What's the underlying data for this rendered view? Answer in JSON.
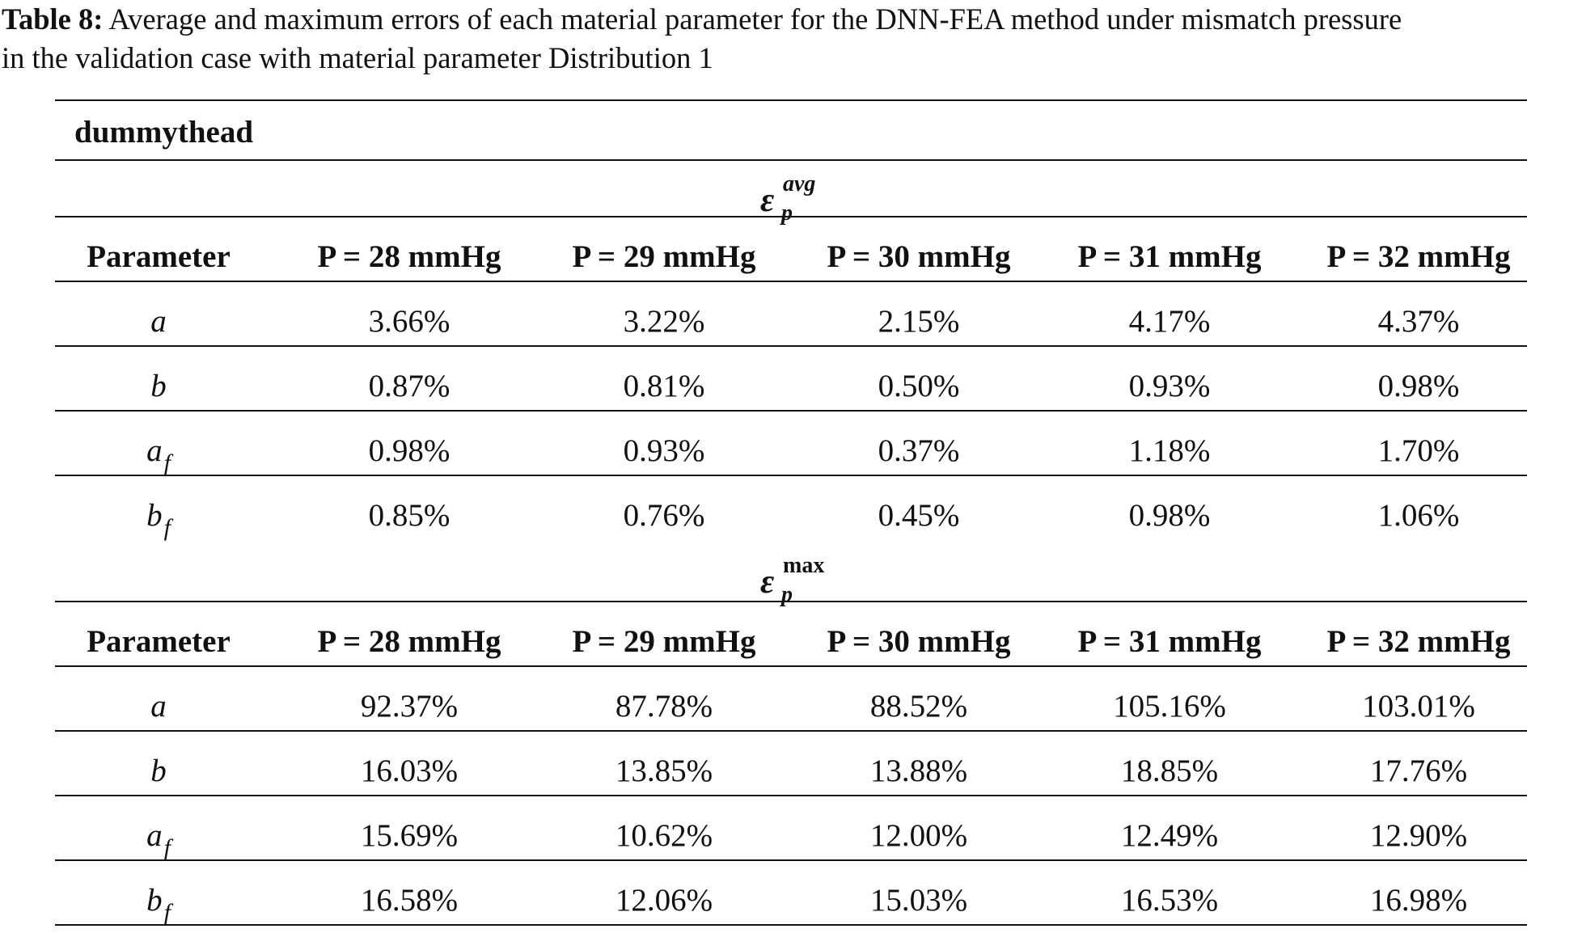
{
  "caption": {
    "label": "Table 8:",
    "line1": " Average and maximum errors of each material parameter for the DNN-FEA method under mismatch pressure",
    "line2": "in the validation case with material parameter Distribution 1"
  },
  "table": {
    "thead_label": "dummythead",
    "sections": [
      {
        "symbol": {
          "base": "ε",
          "sup": "avg",
          "sub": "p"
        },
        "header": [
          "Parameter",
          "P = 28 mmHg",
          "P = 29 mmHg",
          "P = 30 mmHg",
          "P = 31 mmHg",
          "P = 32 mmHg"
        ],
        "rows": [
          {
            "param": "a",
            "param_sub": "",
            "values": [
              "3.66%",
              "3.22%",
              "2.15%",
              "4.17%",
              "4.37%"
            ]
          },
          {
            "param": "b",
            "param_sub": "",
            "values": [
              "0.87%",
              "0.81%",
              "0.50%",
              "0.93%",
              "0.98%"
            ]
          },
          {
            "param": "a",
            "param_sub": "f",
            "values": [
              "0.98%",
              "0.93%",
              "0.37%",
              "1.18%",
              "1.70%"
            ]
          },
          {
            "param": "b",
            "param_sub": "f",
            "values": [
              "0.85%",
              "0.76%",
              "0.45%",
              "0.98%",
              "1.06%"
            ]
          }
        ]
      },
      {
        "symbol": {
          "base": "ε",
          "sup": "max",
          "sub": "p"
        },
        "header": [
          "Parameter",
          "P = 28 mmHg",
          "P = 29 mmHg",
          "P = 30 mmHg",
          "P = 31 mmHg",
          "P = 32 mmHg"
        ],
        "rows": [
          {
            "param": "a",
            "param_sub": "",
            "values": [
              "92.37%",
              "87.78%",
              "88.52%",
              "105.16%",
              "103.01%"
            ]
          },
          {
            "param": "b",
            "param_sub": "",
            "values": [
              "16.03%",
              "13.85%",
              "13.88%",
              "18.85%",
              "17.76%"
            ]
          },
          {
            "param": "a",
            "param_sub": "f",
            "values": [
              "15.69%",
              "10.62%",
              "12.00%",
              "12.49%",
              "12.90%"
            ]
          },
          {
            "param": "b",
            "param_sub": "f",
            "values": [
              "16.58%",
              "12.06%",
              "15.03%",
              "16.53%",
              "16.98%"
            ]
          }
        ]
      }
    ]
  }
}
